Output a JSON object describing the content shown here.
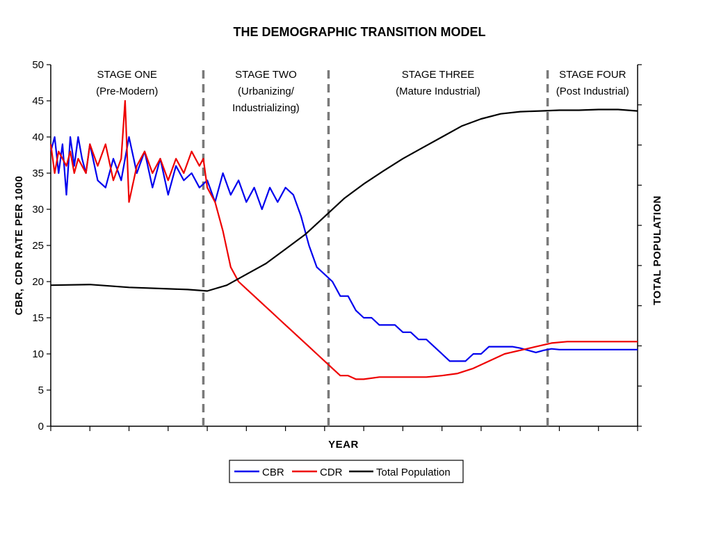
{
  "chart_data": {
    "type": "line",
    "title": "THE DEMOGRAPHIC TRANSITION MODEL",
    "xlabel": "YEAR",
    "ylabel": "CBR, CDR RATE PER 1000",
    "y2label": "TOTAL POPULATION",
    "ylim": [
      0,
      50
    ],
    "yticks": [
      "0",
      "5",
      "10",
      "15",
      "20",
      "25",
      "30",
      "35",
      "40",
      "45",
      "50"
    ],
    "xlim": [
      0,
      150
    ],
    "stages": [
      {
        "boundary": 39,
        "name": "STAGE ONE",
        "sub": [
          "(Pre-Modern)"
        ]
      },
      {
        "boundary": 71,
        "name": "STAGE TWO",
        "sub": [
          "(Urbanizing/",
          "Industrializing)"
        ]
      },
      {
        "boundary": 127,
        "name": "STAGE THREE",
        "sub": [
          "(Mature Industrial)"
        ]
      },
      {
        "boundary": 150,
        "name": "STAGE FOUR",
        "sub": [
          "(Post Industrial)"
        ]
      }
    ],
    "series": [
      {
        "name": "CBR",
        "color": "#0000ee",
        "x": [
          0,
          1,
          2,
          3,
          4,
          5,
          6,
          7,
          8,
          9,
          10,
          12,
          14,
          16,
          18,
          20,
          22,
          24,
          26,
          28,
          30,
          32,
          34,
          36,
          38,
          40,
          42,
          44,
          46,
          48,
          50,
          52,
          54,
          56,
          58,
          60,
          62,
          64,
          66,
          68,
          70,
          72,
          74,
          76,
          78,
          80,
          82,
          84,
          86,
          88,
          90,
          92,
          94,
          96,
          98,
          100,
          102,
          104,
          106,
          108,
          110,
          112,
          114,
          116,
          118,
          120,
          122,
          124,
          126,
          128,
          130,
          132,
          134,
          136,
          138,
          140,
          142,
          144,
          146,
          148,
          150
        ],
        "values": [
          38,
          40,
          35,
          39,
          32,
          40,
          36,
          40,
          37,
          35,
          39,
          34,
          33,
          37,
          34,
          40,
          35,
          38,
          33,
          37,
          32,
          36,
          34,
          35,
          33,
          34,
          31,
          35,
          32,
          34,
          31,
          33,
          30,
          33,
          31,
          33,
          32,
          29,
          25,
          22,
          21,
          20,
          18,
          18,
          16,
          15,
          15,
          14,
          14,
          14,
          13,
          13,
          12,
          12,
          11,
          10,
          9,
          9,
          9,
          10,
          10,
          11,
          11,
          11,
          11,
          10.8,
          10.5,
          10.2,
          10.5,
          10.7,
          10.6,
          10.6,
          10.6,
          10.6,
          10.6,
          10.6,
          10.6,
          10.6,
          10.6,
          10.6,
          10.6
        ]
      },
      {
        "name": "CDR",
        "color": "#ee0000",
        "x": [
          0,
          1,
          2,
          3,
          4,
          5,
          6,
          7,
          8,
          9,
          10,
          12,
          14,
          16,
          18,
          19,
          20,
          22,
          24,
          26,
          28,
          30,
          32,
          34,
          36,
          38,
          39,
          40,
          42,
          44,
          46,
          48,
          50,
          52,
          54,
          56,
          58,
          60,
          62,
          64,
          66,
          68,
          70,
          72,
          74,
          76,
          78,
          80,
          84,
          88,
          92,
          96,
          100,
          104,
          108,
          112,
          116,
          120,
          124,
          128,
          132,
          136,
          140,
          144,
          148,
          150
        ],
        "values": [
          39,
          35,
          38,
          37,
          36,
          38,
          35,
          37,
          36,
          35,
          39,
          36,
          39,
          34,
          37,
          45,
          31,
          36,
          38,
          35,
          37,
          34,
          37,
          35,
          38,
          36,
          37,
          33,
          31,
          27,
          22,
          20,
          19,
          18,
          17,
          16,
          15,
          14,
          13,
          12,
          11,
          10,
          9,
          8,
          7,
          7,
          6.5,
          6.5,
          6.8,
          6.8,
          6.8,
          6.8,
          7,
          7.3,
          8,
          9,
          10,
          10.5,
          11,
          11.5,
          11.7,
          11.7,
          11.7,
          11.7,
          11.7,
          11.7
        ]
      },
      {
        "name": "Total Population",
        "color": "#000000",
        "x": [
          0,
          10,
          20,
          30,
          35,
          40,
          45,
          50,
          55,
          60,
          65,
          70,
          75,
          80,
          85,
          90,
          95,
          100,
          105,
          110,
          115,
          120,
          125,
          130,
          135,
          140,
          145,
          150
        ],
        "values": [
          19.5,
          19.6,
          19.2,
          19.0,
          18.9,
          18.7,
          19.5,
          21,
          22.5,
          24.5,
          26.5,
          29,
          31.5,
          33.5,
          35.3,
          37,
          38.5,
          40,
          41.5,
          42.5,
          43.2,
          43.5,
          43.6,
          43.7,
          43.7,
          43.8,
          43.8,
          43.6
        ]
      }
    ],
    "legend": [
      "CBR",
      "CDR",
      "Total Population"
    ]
  }
}
